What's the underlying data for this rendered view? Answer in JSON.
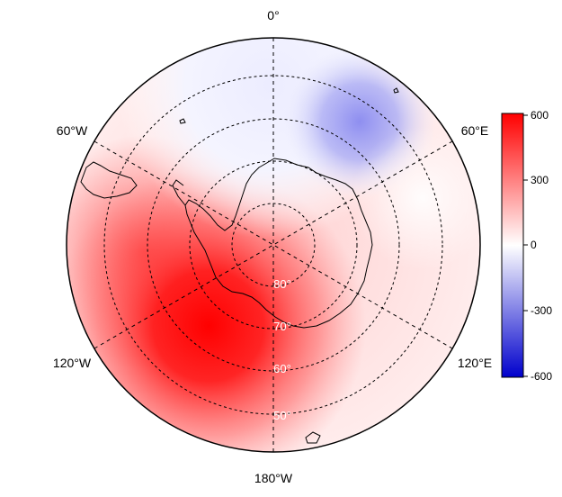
{
  "map": {
    "projection": "south-polar-stereographic",
    "longitude_labels": {
      "top": "0°",
      "upper_left": "60°W",
      "upper_right": "60°E",
      "lower_left": "120°W",
      "lower_right": "120°E",
      "bottom": "180°W"
    },
    "latitude_labels": [
      "80°",
      "70°",
      "60°",
      "50°"
    ],
    "graticule_style": "dashed",
    "coastlines": "black"
  },
  "colorbar": {
    "ticks": [
      "600",
      "300",
      "0",
      "-300",
      "-600"
    ],
    "min": -600,
    "max": 600,
    "colors": {
      "high": "#ff0000",
      "mid": "#ffffff",
      "low": "#0000cc"
    }
  },
  "field_features": [
    {
      "kind": "positive-maximum",
      "sector": "120°W-180°W",
      "approx_value": 600
    },
    {
      "kind": "negative-minimum",
      "sector": "20°E-50°E",
      "approx_value": -250
    },
    {
      "kind": "weak-negative",
      "sector": "0°-60°W",
      "approx_value": -80
    }
  ]
}
